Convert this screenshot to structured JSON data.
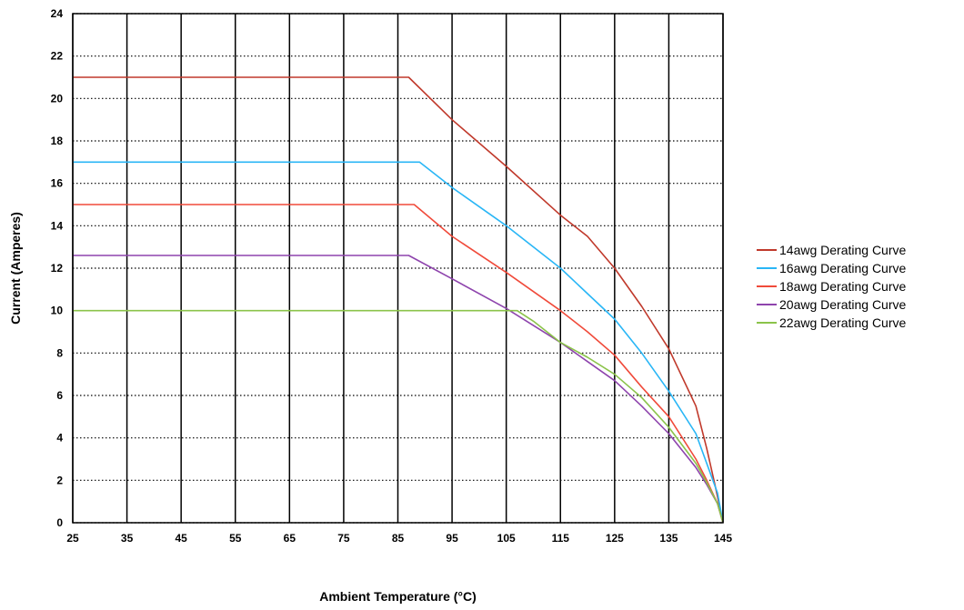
{
  "chart_data": {
    "type": "line",
    "title": "",
    "xlabel": "Ambient Temperature (°C)",
    "ylabel": "Current (Amperes)",
    "xlim": [
      25,
      145
    ],
    "ylim": [
      0,
      24
    ],
    "xticks": [
      25,
      35,
      45,
      55,
      65,
      75,
      85,
      95,
      105,
      115,
      125,
      135,
      145
    ],
    "yticks": [
      0,
      2,
      4,
      6,
      8,
      10,
      12,
      14,
      16,
      18,
      20,
      22,
      24
    ],
    "grid": {
      "vertical": "solid",
      "horizontal": "dotted"
    },
    "legend_position": "right",
    "series": [
      {
        "name": "14awg Derating Curve",
        "color": "#c0392b",
        "points": [
          [
            25,
            21
          ],
          [
            87,
            21
          ],
          [
            95,
            19
          ],
          [
            105,
            16.8
          ],
          [
            115,
            14.5
          ],
          [
            120,
            13.5
          ],
          [
            125,
            12
          ],
          [
            130,
            10.2
          ],
          [
            135,
            8.2
          ],
          [
            140,
            5.5
          ],
          [
            142,
            3.5
          ],
          [
            143.5,
            1.8
          ],
          [
            145,
            0
          ]
        ]
      },
      {
        "name": "16awg Derating Curve",
        "color": "#29b6f6",
        "points": [
          [
            25,
            17
          ],
          [
            89,
            17
          ],
          [
            95,
            15.8
          ],
          [
            105,
            14
          ],
          [
            115,
            12
          ],
          [
            120,
            10.8
          ],
          [
            125,
            9.6
          ],
          [
            130,
            8
          ],
          [
            135,
            6.2
          ],
          [
            140,
            4.2
          ],
          [
            142,
            2.8
          ],
          [
            144,
            1.4
          ],
          [
            145,
            0
          ]
        ]
      },
      {
        "name": "18awg Derating Curve",
        "color": "#f04a3a",
        "points": [
          [
            25,
            15
          ],
          [
            88,
            15
          ],
          [
            95,
            13.5
          ],
          [
            105,
            11.8
          ],
          [
            115,
            10
          ],
          [
            120,
            9
          ],
          [
            125,
            7.9
          ],
          [
            130,
            6.4
          ],
          [
            135,
            5
          ],
          [
            140,
            3
          ],
          [
            142,
            2
          ],
          [
            144,
            0.9
          ],
          [
            145,
            0
          ]
        ]
      },
      {
        "name": "20awg Derating Curve",
        "color": "#8e44ad",
        "points": [
          [
            25,
            12.6
          ],
          [
            87,
            12.6
          ],
          [
            95,
            11.5
          ],
          [
            105,
            10.1
          ],
          [
            115,
            8.5
          ],
          [
            120,
            7.6
          ],
          [
            125,
            6.7
          ],
          [
            130,
            5.5
          ],
          [
            135,
            4.2
          ],
          [
            140,
            2.6
          ],
          [
            142,
            1.8
          ],
          [
            144,
            0.9
          ],
          [
            145,
            0
          ]
        ]
      },
      {
        "name": "22awg Derating Curve",
        "color": "#8bc34a",
        "points": [
          [
            25,
            10
          ],
          [
            107,
            10
          ],
          [
            110,
            9.5
          ],
          [
            115,
            8.5
          ],
          [
            120,
            7.8
          ],
          [
            125,
            7
          ],
          [
            130,
            5.9
          ],
          [
            135,
            4.5
          ],
          [
            140,
            2.8
          ],
          [
            142,
            1.9
          ],
          [
            144,
            0.9
          ],
          [
            145,
            0
          ]
        ]
      }
    ]
  }
}
